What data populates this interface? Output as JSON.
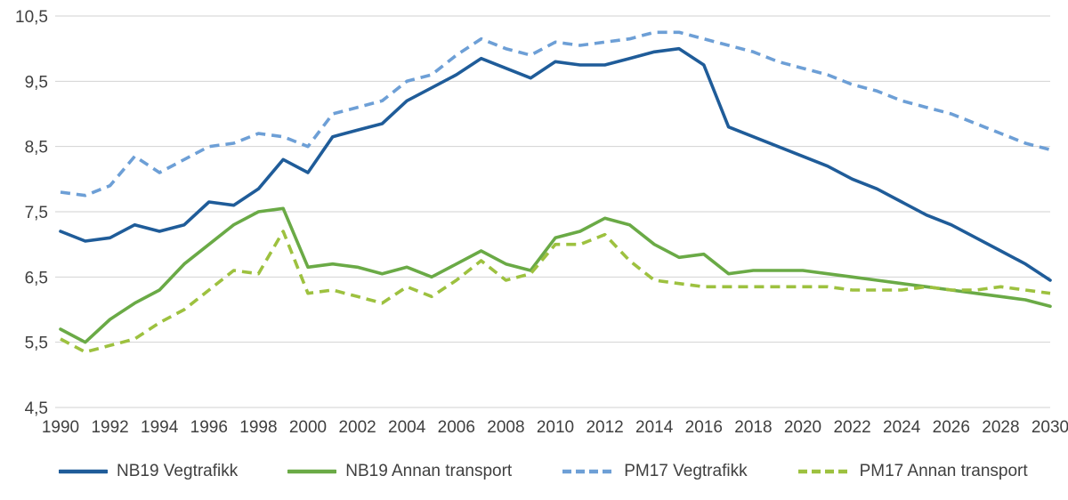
{
  "chart_data": {
    "type": "line",
    "x": [
      1990,
      1991,
      1992,
      1993,
      1994,
      1995,
      1996,
      1997,
      1998,
      1999,
      2000,
      2001,
      2002,
      2003,
      2004,
      2005,
      2006,
      2007,
      2008,
      2009,
      2010,
      2011,
      2012,
      2013,
      2014,
      2015,
      2016,
      2017,
      2018,
      2019,
      2020,
      2021,
      2022,
      2023,
      2024,
      2025,
      2026,
      2027,
      2028,
      2029,
      2030
    ],
    "x_tick_labels": [
      "1990",
      "1992",
      "1994",
      "1996",
      "1998",
      "2000",
      "2002",
      "2004",
      "2006",
      "2008",
      "2010",
      "2012",
      "2014",
      "2016",
      "2018",
      "2020",
      "2022",
      "2024",
      "2026",
      "2028",
      "2030"
    ],
    "y_ticks": [
      4.5,
      5.5,
      6.5,
      7.5,
      8.5,
      9.5,
      10.5
    ],
    "y_tick_labels": [
      "4,5",
      "5,5",
      "6,5",
      "7,5",
      "8,5",
      "9,5",
      "10,5"
    ],
    "ylim": [
      4.5,
      10.5
    ],
    "grid": "horizontal",
    "legend_position": "bottom",
    "title": "",
    "xlabel": "",
    "ylabel": "",
    "series": [
      {
        "name": "NB19 Vegtrafikk",
        "color": "#1f5c99",
        "dash": false,
        "values": [
          7.2,
          7.05,
          7.1,
          7.3,
          7.2,
          7.3,
          7.65,
          7.6,
          7.85,
          8.3,
          8.1,
          8.65,
          8.75,
          8.85,
          9.2,
          9.4,
          9.6,
          9.85,
          9.7,
          9.55,
          9.8,
          9.75,
          9.75,
          9.85,
          9.95,
          10.0,
          9.75,
          8.8,
          8.65,
          8.5,
          8.35,
          8.2,
          8.0,
          7.85,
          7.65,
          7.45,
          7.3,
          7.1,
          6.9,
          6.7,
          6.45
        ]
      },
      {
        "name": "NB19 Annan transport",
        "color": "#6aaa46",
        "dash": false,
        "values": [
          5.7,
          5.5,
          5.85,
          6.1,
          6.3,
          6.7,
          7.0,
          7.3,
          7.5,
          7.55,
          6.65,
          6.7,
          6.65,
          6.55,
          6.65,
          6.5,
          6.7,
          6.9,
          6.7,
          6.6,
          7.1,
          7.2,
          7.4,
          7.3,
          7.0,
          6.8,
          6.85,
          6.55,
          6.6,
          6.6,
          6.6,
          6.55,
          6.5,
          6.45,
          6.4,
          6.35,
          6.3,
          6.25,
          6.2,
          6.15,
          6.05
        ]
      },
      {
        "name": "PM17 Vegtrafikk",
        "color": "#6d9fd6",
        "dash": true,
        "values": [
          7.8,
          7.75,
          7.9,
          8.35,
          8.1,
          8.3,
          8.5,
          8.55,
          8.7,
          8.65,
          8.5,
          9.0,
          9.1,
          9.2,
          9.5,
          9.6,
          9.9,
          10.15,
          10.0,
          9.9,
          10.1,
          10.05,
          10.1,
          10.15,
          10.25,
          10.25,
          10.15,
          10.05,
          9.95,
          9.8,
          9.7,
          9.6,
          9.45,
          9.35,
          9.2,
          9.1,
          9.0,
          8.85,
          8.7,
          8.55,
          8.45
        ]
      },
      {
        "name": "PM17 Annan transport",
        "color": "#9dc13f",
        "dash": true,
        "values": [
          5.55,
          5.35,
          5.45,
          5.55,
          5.8,
          6.0,
          6.3,
          6.6,
          6.55,
          7.2,
          6.25,
          6.3,
          6.2,
          6.1,
          6.35,
          6.2,
          6.45,
          6.75,
          6.45,
          6.55,
          7.0,
          7.0,
          7.15,
          6.75,
          6.45,
          6.4,
          6.35,
          6.35,
          6.35,
          6.35,
          6.35,
          6.35,
          6.3,
          6.3,
          6.3,
          6.35,
          6.3,
          6.3,
          6.35,
          6.3,
          6.25
        ]
      }
    ]
  },
  "legend": {
    "items": [
      {
        "label": "NB19 Vegtrafikk"
      },
      {
        "label": "NB19 Annan transport"
      },
      {
        "label": "PM17 Vegtrafikk"
      },
      {
        "label": "PM17 Annan transport"
      }
    ]
  }
}
